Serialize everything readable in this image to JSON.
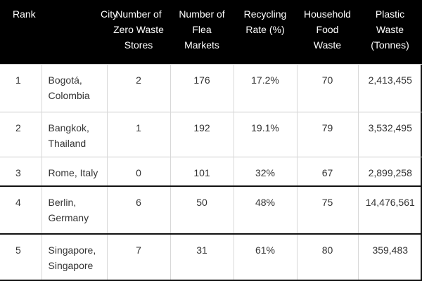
{
  "table": {
    "headers": [
      "Rank",
      "City",
      "Number of Zero Waste Stores",
      "Number of Flea Markets",
      "Recycling Rate (%)",
      "Household Food Waste",
      "Plastic Waste (Tonnes)"
    ],
    "header_lines": [
      [
        "Rank"
      ],
      [
        "City"
      ],
      [
        "Number of",
        "Zero Waste",
        "Stores"
      ],
      [
        "Number of",
        "Flea",
        "Markets"
      ],
      [
        "Recycling",
        "Rate (%)"
      ],
      [
        "Household",
        "Food",
        "Waste"
      ],
      [
        "Plastic",
        "Waste",
        "(Tonnes)"
      ]
    ],
    "rows": [
      {
        "rank": "1",
        "city_line1": "Bogotá,",
        "city_line2": "Colombia",
        "zero_waste_stores": "2",
        "flea_markets": "176",
        "recycling_rate": "17.2%",
        "household_food_waste": "70",
        "plastic_waste": "2,413,455"
      },
      {
        "rank": "2",
        "city_line1": "Bangkok,",
        "city_line2": "Thailand",
        "zero_waste_stores": "1",
        "flea_markets": "192",
        "recycling_rate": "19.1%",
        "household_food_waste": "79",
        "plastic_waste": "3,532,495"
      },
      {
        "rank": "3",
        "city_line1": "Rome, Italy",
        "city_line2": "",
        "zero_waste_stores": "0",
        "flea_markets": "101",
        "recycling_rate": "32%",
        "household_food_waste": "67",
        "plastic_waste": "2,899,258"
      },
      {
        "rank": "4",
        "city_line1": "Berlin,",
        "city_line2": "Germany",
        "zero_waste_stores": "6",
        "flea_markets": "50",
        "recycling_rate": "48%",
        "household_food_waste": "75",
        "plastic_waste": "14,476,561"
      },
      {
        "rank": "5",
        "city_line1": "Singapore,",
        "city_line2": "Singapore",
        "zero_waste_stores": "7",
        "flea_markets": "31",
        "recycling_rate": "61%",
        "household_food_waste": "80",
        "plastic_waste": "359,483"
      }
    ]
  },
  "colors": {
    "header_background": "#000000",
    "header_text": "#ffffff",
    "body_text": "#333333",
    "row_divider": "#cccccc"
  }
}
